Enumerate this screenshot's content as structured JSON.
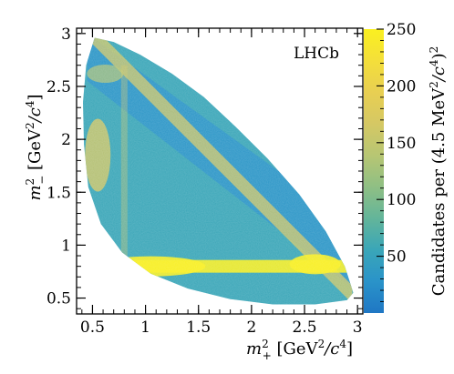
{
  "chart_data": {
    "type": "heatmap",
    "title": "",
    "annotation": "LHCb",
    "xlabel": {
      "main": "m",
      "sup": "2",
      "sub": "+",
      "unit_open": " [GeV",
      "unit_sup": "2",
      "unit_mid": "/c",
      "unit_sup2": "4",
      "unit_close": "]"
    },
    "ylabel": {
      "main": "m",
      "sup": "2",
      "sub": "−",
      "unit_open": " [GeV",
      "unit_sup": "2",
      "unit_mid": "/c",
      "unit_sup2": "4",
      "unit_close": "]"
    },
    "xlim": [
      0.35,
      3.05
    ],
    "ylim": [
      0.35,
      3.05
    ],
    "x_ticks": [
      0.5,
      1,
      1.5,
      2,
      2.5,
      3
    ],
    "x_tick_labels": [
      "0.5",
      "1",
      "1.5",
      "2",
      "2.5",
      "3"
    ],
    "y_ticks": [
      0.5,
      1,
      1.5,
      2,
      2.5,
      3
    ],
    "y_tick_labels": [
      "0.5",
      "1",
      "1.5",
      "2",
      "2.5",
      "3"
    ],
    "colorbar": {
      "label_prefix": "Candidates per (4.5 MeV",
      "label_sup": "2",
      "label_mid": "/c",
      "label_sup2": "4",
      "label_close": ")",
      "label_sup3": "2",
      "range": [
        0,
        250
      ],
      "ticks": [
        50,
        100,
        150,
        200,
        250
      ],
      "tick_labels": [
        "50",
        "100",
        "150",
        "200",
        "250"
      ],
      "colors": [
        "#1f77c4",
        "#2a93c9",
        "#3aa6b8",
        "#63b59a",
        "#8fbf84",
        "#b7c673",
        "#d5c864",
        "#e8cf52",
        "#f4df3a",
        "#faf020"
      ]
    },
    "dalitz_boundary": [
      [
        0.52,
        2.96
      ],
      [
        0.7,
        2.92
      ],
      [
        0.95,
        2.8
      ],
      [
        1.25,
        2.62
      ],
      [
        1.55,
        2.4
      ],
      [
        1.85,
        2.12
      ],
      [
        2.15,
        1.82
      ],
      [
        2.45,
        1.48
      ],
      [
        2.7,
        1.13
      ],
      [
        2.88,
        0.8
      ],
      [
        2.96,
        0.55
      ],
      [
        2.9,
        0.48
      ],
      [
        2.6,
        0.44
      ],
      [
        2.2,
        0.44
      ],
      [
        1.8,
        0.49
      ],
      [
        1.4,
        0.59
      ],
      [
        1.05,
        0.73
      ],
      [
        0.78,
        0.93
      ],
      [
        0.58,
        1.2
      ],
      [
        0.46,
        1.55
      ],
      [
        0.42,
        1.95
      ],
      [
        0.41,
        2.35
      ],
      [
        0.44,
        2.7
      ],
      [
        0.52,
        2.96
      ]
    ],
    "bands": [
      {
        "description_note": "horizontal band",
        "axis": "y",
        "center": 0.8,
        "from_x": 0.75,
        "to_x": 2.98,
        "intensity": 240
      },
      {
        "axis": "x",
        "center": 0.8,
        "from_y": 0.9,
        "to_y": 2.7,
        "intensity": 180
      },
      {
        "axis": "diagonal",
        "center": 3.4,
        "intensity": 160
      }
    ]
  }
}
